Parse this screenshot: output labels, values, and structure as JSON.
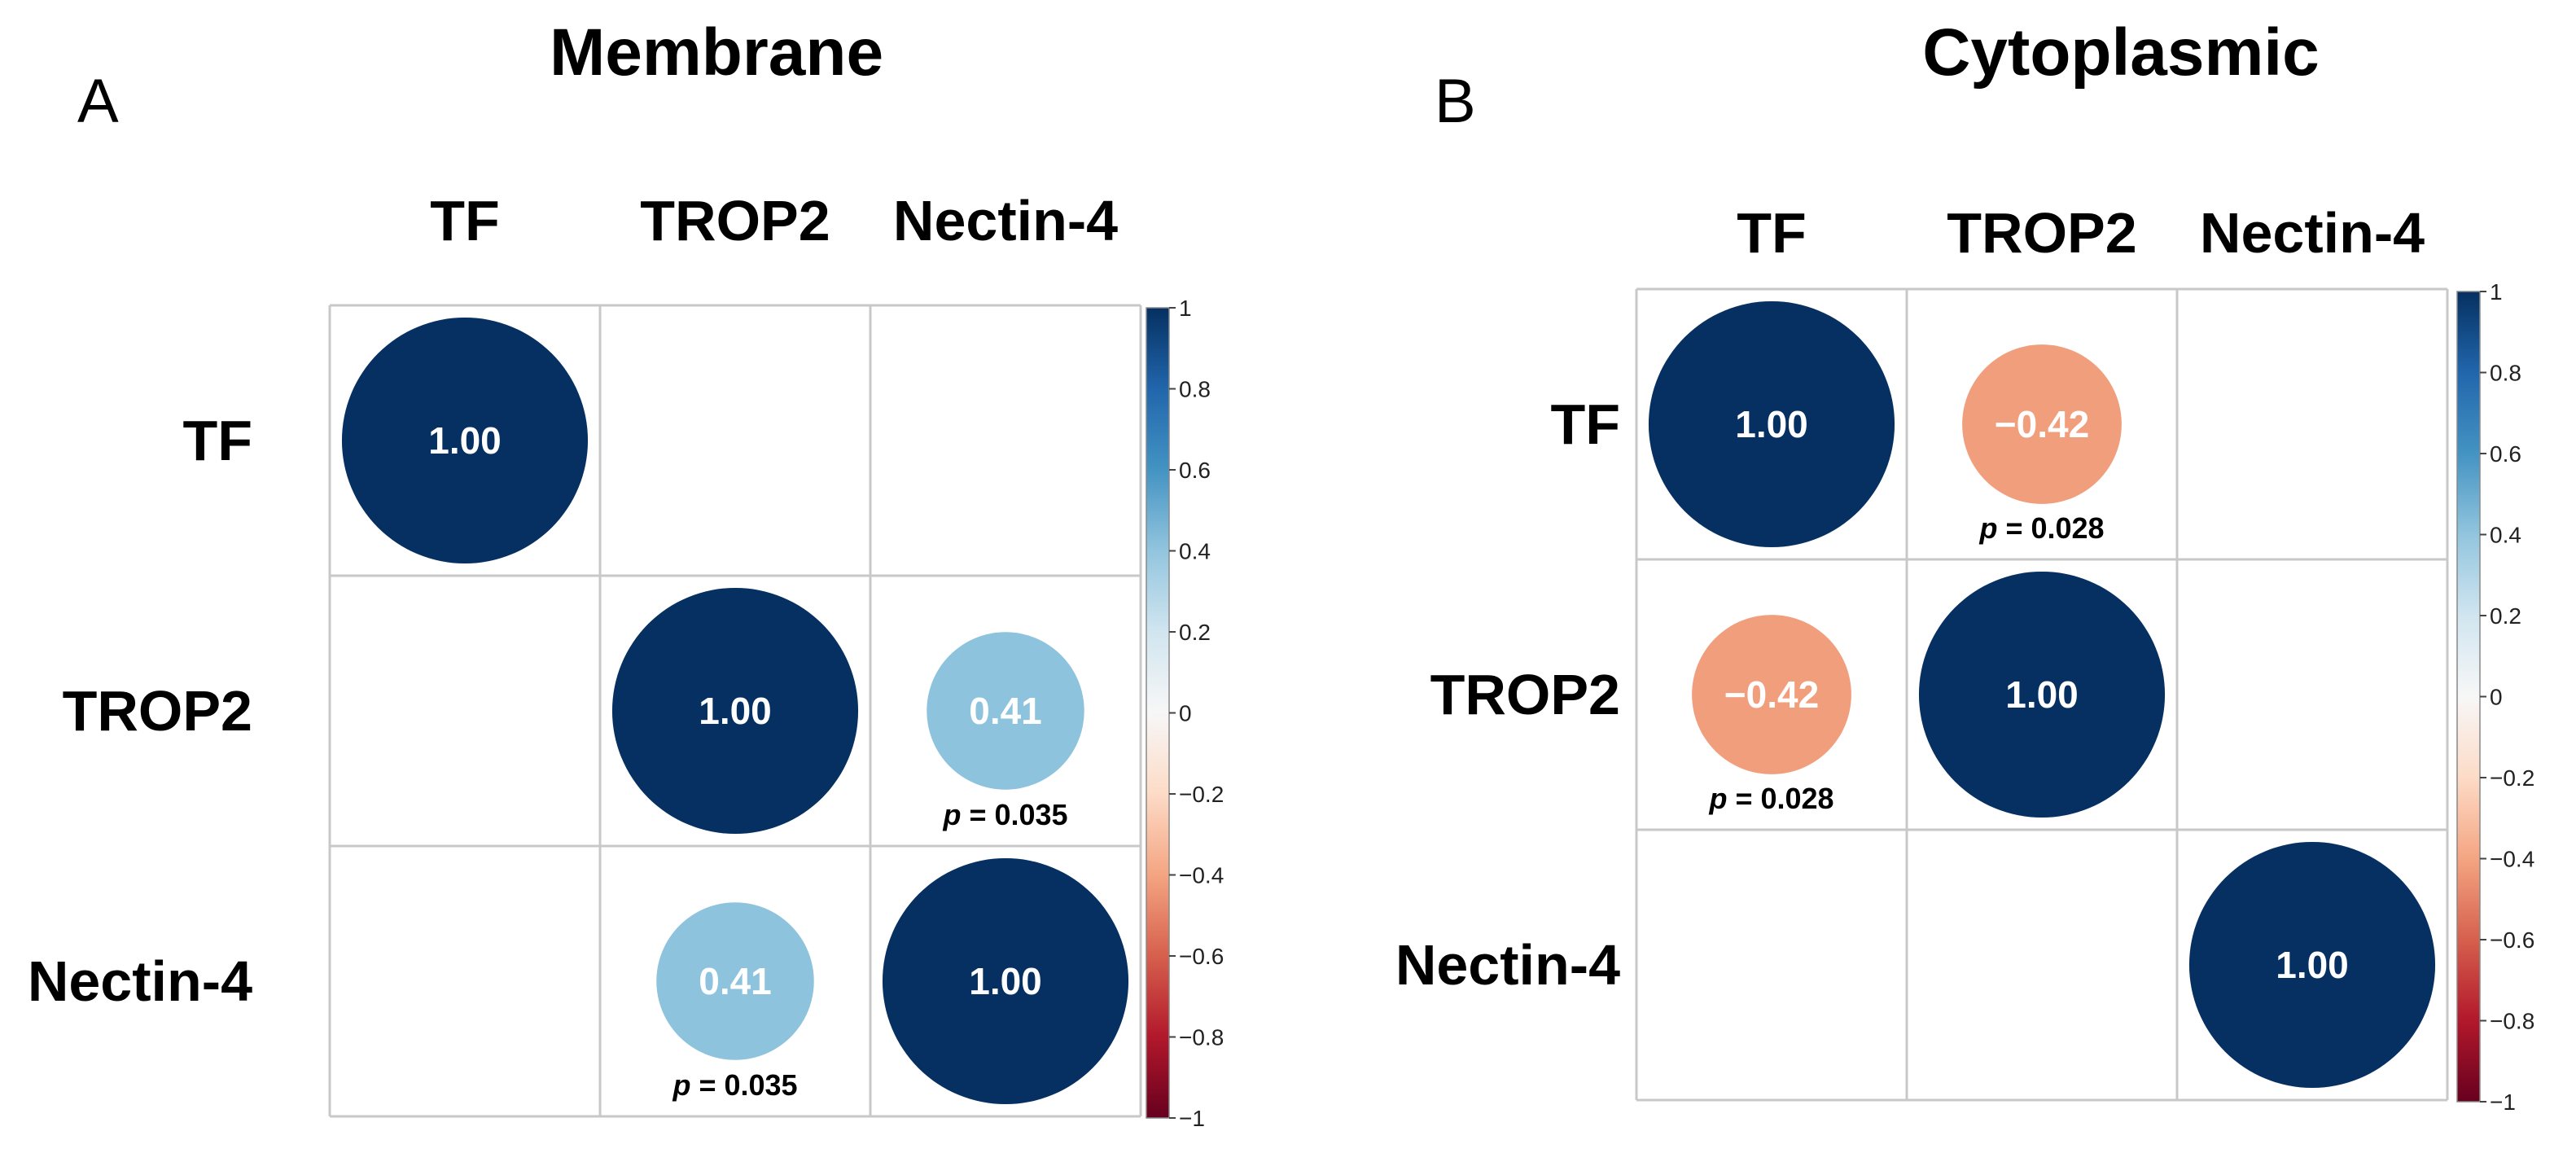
{
  "chart_data": [
    {
      "type": "heatmap",
      "panel": "A",
      "title": "Membrane",
      "labels": [
        "TF",
        "TROP2",
        "Nectin-4"
      ],
      "matrix": [
        [
          1.0,
          null,
          null
        ],
        [
          null,
          1.0,
          0.41
        ],
        [
          null,
          0.41,
          1.0
        ]
      ],
      "value_labels": [
        [
          "1.00",
          "",
          ""
        ],
        [
          "",
          "1.00",
          "0.41"
        ],
        [
          "",
          "0.41",
          "1.00"
        ]
      ],
      "p_labels": [
        [
          "",
          "",
          ""
        ],
        [
          "",
          "",
          "0.035"
        ],
        [
          "",
          "0.035",
          ""
        ]
      ],
      "p_prefix": "p",
      "p_suffix_sep": " = ",
      "colorbar": {
        "range": [
          -1,
          1
        ],
        "ticks": [
          "1",
          "0.8",
          "0.6",
          "0.4",
          "0.2",
          "0",
          "−0.2",
          "−0.4",
          "−0.6",
          "−0.8",
          "−1"
        ]
      }
    },
    {
      "type": "heatmap",
      "panel": "B",
      "title": "Cytoplasmic",
      "labels": [
        "TF",
        "TROP2",
        "Nectin-4"
      ],
      "matrix": [
        [
          1.0,
          -0.42,
          null
        ],
        [
          -0.42,
          1.0,
          null
        ],
        [
          null,
          null,
          1.0
        ]
      ],
      "value_labels": [
        [
          "1.00",
          "−0.42",
          ""
        ],
        [
          "−0.42",
          "1.00",
          ""
        ],
        [
          "",
          "",
          "1.00"
        ]
      ],
      "p_labels": [
        [
          "",
          "0.028",
          ""
        ],
        [
          "0.028",
          "",
          ""
        ],
        [
          "",
          "",
          ""
        ]
      ],
      "p_prefix": "p",
      "p_suffix_sep": " = ",
      "colorbar": {
        "range": [
          -1,
          1
        ],
        "ticks": [
          "1",
          "0.8",
          "0.6",
          "0.4",
          "0.2",
          "0",
          "−0.2",
          "−0.4",
          "−0.6",
          "−0.8",
          "−1"
        ]
      }
    }
  ],
  "colors": {
    "scale": [
      "#67001f",
      "#b2182b",
      "#d6604d",
      "#f4a582",
      "#fddbc7",
      "#f7f7f7",
      "#d1e5f0",
      "#92c5de",
      "#4393c3",
      "#2166ac",
      "#053061"
    ],
    "grid": "#c8c8c8"
  }
}
